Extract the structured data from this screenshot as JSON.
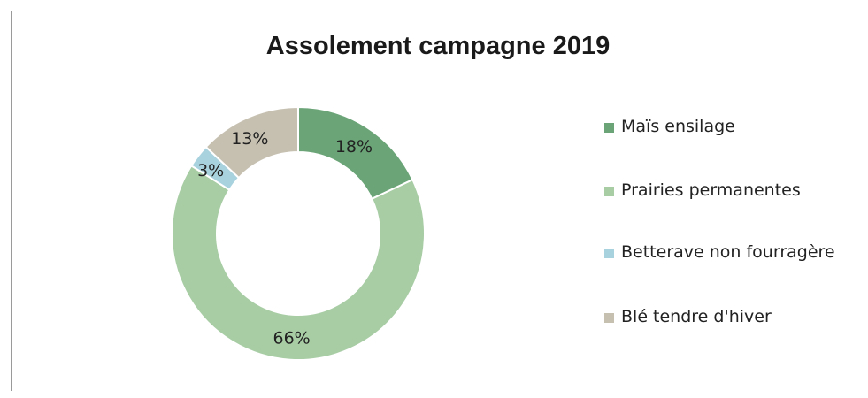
{
  "chart_data": {
    "type": "pie",
    "variant": "donut",
    "title": "Assolement campagne 2019",
    "legend_position": "right",
    "slices": [
      {
        "label": "Maïs ensilage",
        "value": 18,
        "display": "18%",
        "color": "#6aa477"
      },
      {
        "label": "Prairies permanentes",
        "value": 66,
        "display": "66%",
        "color": "#a8cda5"
      },
      {
        "label": "Betterave non fourragère",
        "value": 3,
        "display": "3%",
        "color": "#a9d2df"
      },
      {
        "label": "Blé tendre d'hiver",
        "value": 13,
        "display": "13%",
        "color": "#c6c0b1"
      }
    ]
  }
}
